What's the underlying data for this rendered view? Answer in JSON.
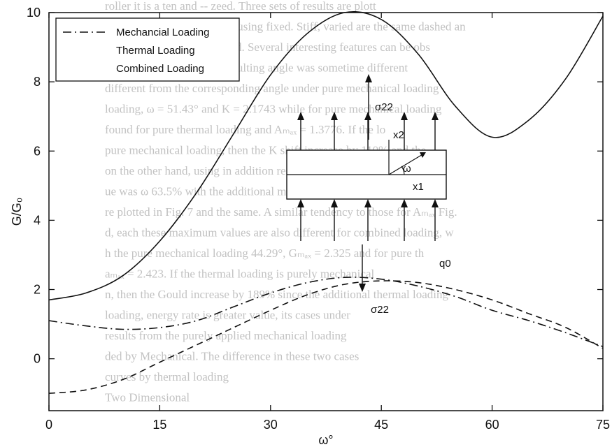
{
  "chart_data": {
    "type": "line",
    "xlabel": "ω°",
    "ylabel": "G/G₀",
    "xlim": [
      0,
      75
    ],
    "ylim": [
      -1.5,
      10
    ],
    "x_ticks": [
      0,
      15,
      30,
      45,
      60,
      75
    ],
    "y_ticks": [
      0,
      2,
      4,
      6,
      8,
      10
    ],
    "grid": false,
    "legend_position": "top-left",
    "series": [
      {
        "name": "Mechancial Loading",
        "style": "dash-dot",
        "x": [
          0,
          5,
          10,
          15,
          20,
          25,
          30,
          35,
          40,
          45,
          50,
          55,
          60,
          65,
          70,
          75
        ],
        "y": [
          1.1,
          0.95,
          0.85,
          0.9,
          1.1,
          1.5,
          1.9,
          2.2,
          2.35,
          2.3,
          2.1,
          1.8,
          1.4,
          1.1,
          0.75,
          0.35
        ]
      },
      {
        "name": "Thermal Loading",
        "style": "dashed",
        "x": [
          0,
          5,
          10,
          15,
          20,
          25,
          30,
          35,
          40,
          45,
          50,
          55,
          60,
          65,
          70,
          75
        ],
        "y": [
          -1.0,
          -0.9,
          -0.6,
          -0.1,
          0.4,
          0.9,
          1.4,
          1.85,
          2.15,
          2.25,
          2.2,
          2.0,
          1.7,
          1.3,
          0.9,
          0.3
        ]
      },
      {
        "name": "Combined Loading",
        "style": "solid",
        "x": [
          0,
          5,
          10,
          15,
          20,
          25,
          30,
          35,
          40,
          45,
          50,
          55,
          60,
          65,
          70,
          75
        ],
        "y": [
          1.7,
          1.9,
          2.4,
          3.4,
          4.8,
          6.5,
          8.2,
          9.4,
          10.0,
          9.8,
          8.8,
          7.3,
          6.4,
          6.9,
          8.1,
          9.9
        ]
      }
    ]
  },
  "diagram": {
    "sigma_top": "σ22",
    "sigma_bottom": "σ22",
    "x2_label": "x2",
    "x1_label": "x1",
    "omega_label": "ω",
    "q0_label": "q0"
  },
  "background_text": [
    "roller it is a ten and -- zeed. Three sets of results are plott",
    "ue for combined loading of using fixed. Stiff, varied are the same dashed an",
    "h line for only mo as applied. Several interesting features can be obs",
    "ese figures. In Fig. 6 the resulting angle was sometime different",
    "different from the corresponding angle under pure mechanical loading",
    "loading, ω = 51.43° and K = 2.1743 while for pure mechanical loading",
    "found for pure thermal loading and Aₘₐₓ = 1.3776. If the lo",
    "pure mechanical loading, then the K shift increase by 110% and the",
    "on the other hand, using in addition resulting angle is gradually",
    "ue was ω 63.5% with the additional mechanical loading applied. The",
    "re plotted in Fig. 7 and the same. A similar tendency to those for Aₘₐₓ Fig.",
    "d, each these maximum values are also different for combined loading, w",
    "h the pure mechanical loading 44.29°, Gₘₐₓ = 2.325 and for pure th",
    "aₘₐₓ = 2.423. If the thermal loading is purely mechanical",
    "n, then the Gould increase by 189% since the additional thermal loading",
    "loading, energy rate is greater value, its cases under",
    "results from the purely applied mechanical loading",
    "ded by Mechanical. The difference in these two cases",
    "curves by thermal loading",
    "Two Dimensional"
  ]
}
